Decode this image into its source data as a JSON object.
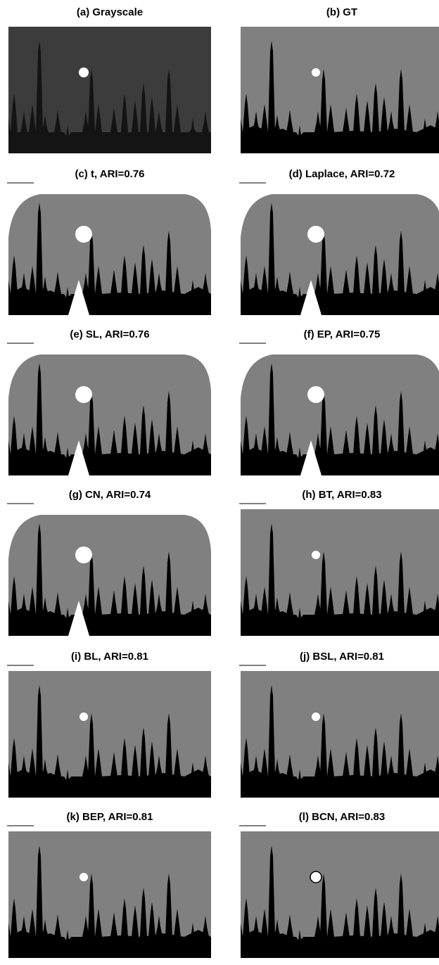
{
  "panels": [
    {
      "title": "(a) Grayscale"
    },
    {
      "title": "(b) GT"
    },
    {
      "title": "(c) t, ARI=0.76"
    },
    {
      "title": "(d) Laplace, ARI=0.72"
    },
    {
      "title": "(e) SL, ARI=0.76"
    },
    {
      "title": "(f) EP, ARI=0.75"
    },
    {
      "title": "(g) CN, ARI=0.74"
    },
    {
      "title": "(h) BT, ARI=0.83"
    },
    {
      "title": "(i) BL, ARI=0.81"
    },
    {
      "title": "(j) BSL, ARI=0.81"
    },
    {
      "title": "(k) BEP, ARI=0.81"
    },
    {
      "title": "(l) BCN, ARI=0.83"
    }
  ]
}
